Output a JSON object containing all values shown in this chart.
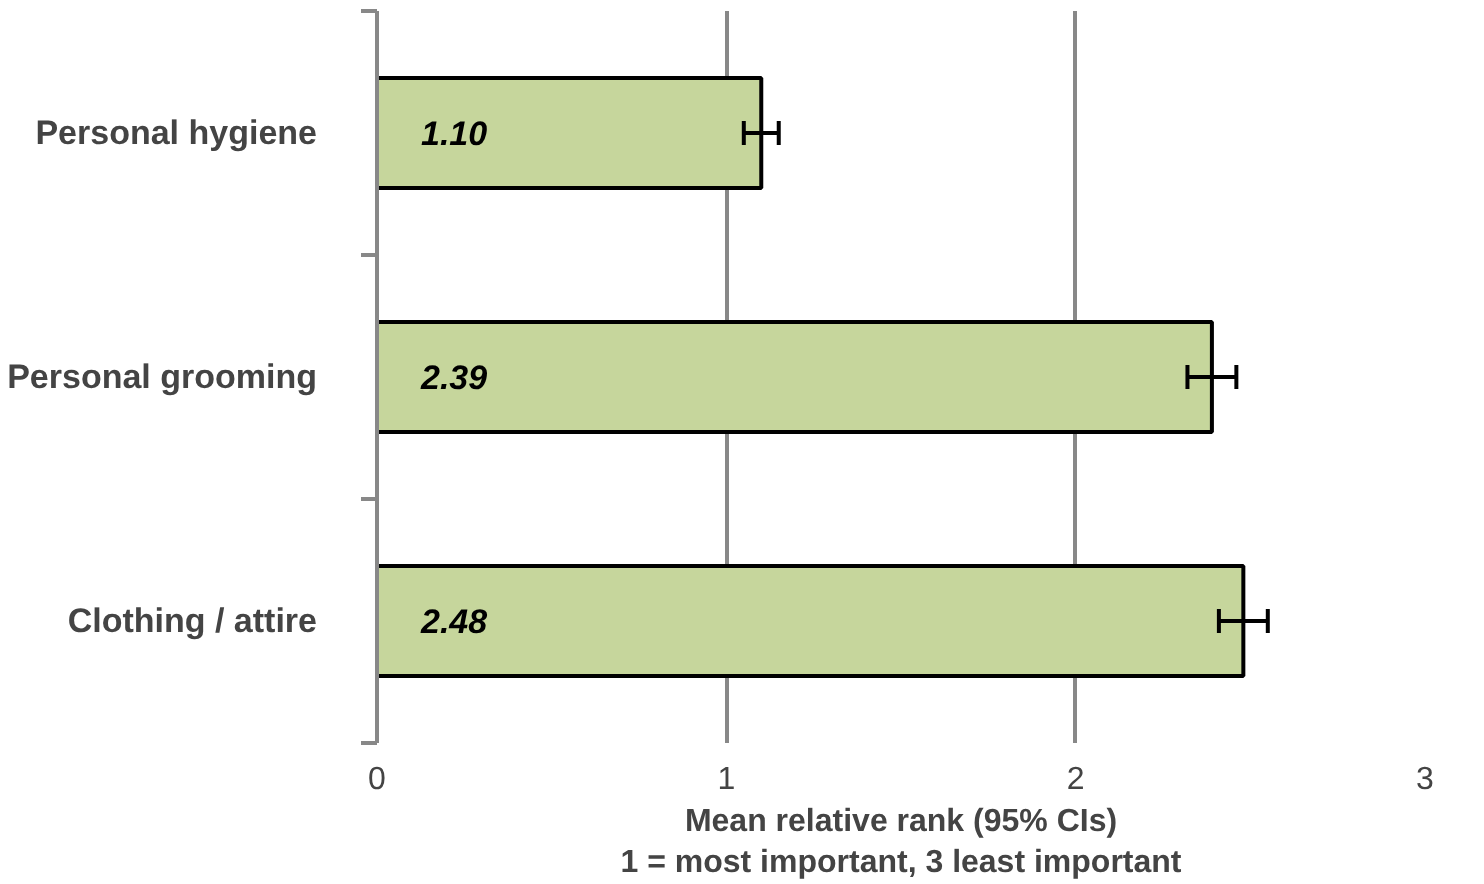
{
  "chart_data": {
    "type": "bar",
    "orientation": "horizontal",
    "categories": [
      "Personal hygiene",
      "Personal grooming",
      "Clothing / attire"
    ],
    "values": [
      1.1,
      2.39,
      2.48
    ],
    "errors": [
      0.05,
      0.07,
      0.07
    ],
    "color": "#c6d69c",
    "value_labels": [
      "1.10",
      "2.39",
      "2.48"
    ],
    "xlim": [
      0,
      3
    ],
    "xticks": [
      0,
      1,
      2,
      3
    ],
    "grid": "x",
    "xlabel": "Mean relative rank (95% CIs)\n1 = most important, 3 least important"
  }
}
